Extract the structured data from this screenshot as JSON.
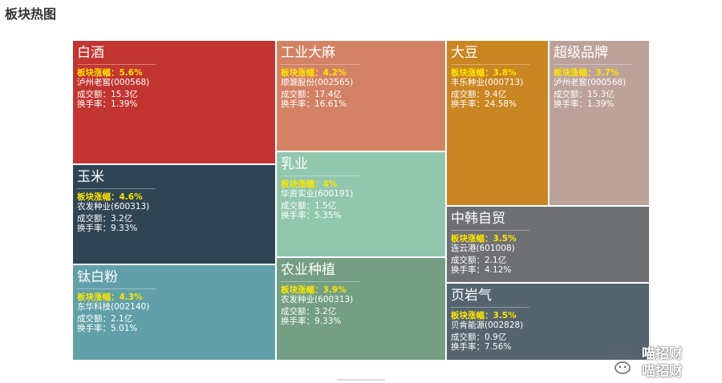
{
  "page": {
    "title": "板块热图"
  },
  "treemap": {
    "tiles": [
      {
        "name": "白酒",
        "change": "板块涨幅：5.6%",
        "stock": "泸州老窖(000568)",
        "volume": "成交额：15.3亿",
        "turnover": "换手率：1.39%",
        "color": "#c23531"
      },
      {
        "name": "玉米",
        "change": "板块涨幅：4.6%",
        "stock": "农发种业(600313)",
        "volume": "成交额：3.2亿",
        "turnover": "换手率：9.33%",
        "color": "#2f4554"
      },
      {
        "name": "钛白粉",
        "change": "板块涨幅：4.3%",
        "stock": "东华科技(002140)",
        "volume": "成交额：2.1亿",
        "turnover": "换手率：5.01%",
        "color": "#61a0a8"
      },
      {
        "name": "工业大麻",
        "change": "板块涨幅：4.2%",
        "stock": "顺灏股份(002565)",
        "volume": "成交额：17.4亿",
        "turnover": "换手率：16.61%",
        "color": "#d48265"
      },
      {
        "name": "乳业",
        "change": "板块涨幅：4%",
        "stock": "华资实业(600191)",
        "volume": "成交额：1.5亿",
        "turnover": "换手率：5.35%",
        "color": "#91c7ae"
      },
      {
        "name": "农业种植",
        "change": "板块涨幅：3.9%",
        "stock": "农发种业(600313)",
        "volume": "成交额：3.2亿",
        "turnover": "换手率：9.33%",
        "color": "#749f83"
      },
      {
        "name": "大豆",
        "change": "板块涨幅：3.8%",
        "stock": "丰乐种业(000713)",
        "volume": "成交额：9.4亿",
        "turnover": "换手率：24.58%",
        "color": "#ca8622"
      },
      {
        "name": "超级品牌",
        "change": "板块涨幅：3.7%",
        "stock": "泸州老窖(000568)",
        "volume": "成交额：15.3亿",
        "turnover": "换手率：1.39%",
        "color": "#bda29a"
      },
      {
        "name": "中韩自贸",
        "change": "板块涨幅：3.5%",
        "stock": "连云港(601008)",
        "volume": "成交额：2.1亿",
        "turnover": "换手率：4.12%",
        "color": "#6e7074"
      },
      {
        "name": "页岩气",
        "change": "板块涨幅：3.5%",
        "stock": "贝肯能源(002828)",
        "volume": "成交额：0.9亿",
        "turnover": "换手率：7.56%",
        "color": "#546570"
      }
    ]
  },
  "watermark": {
    "line1": "喵招财",
    "line2": "喵招财"
  }
}
